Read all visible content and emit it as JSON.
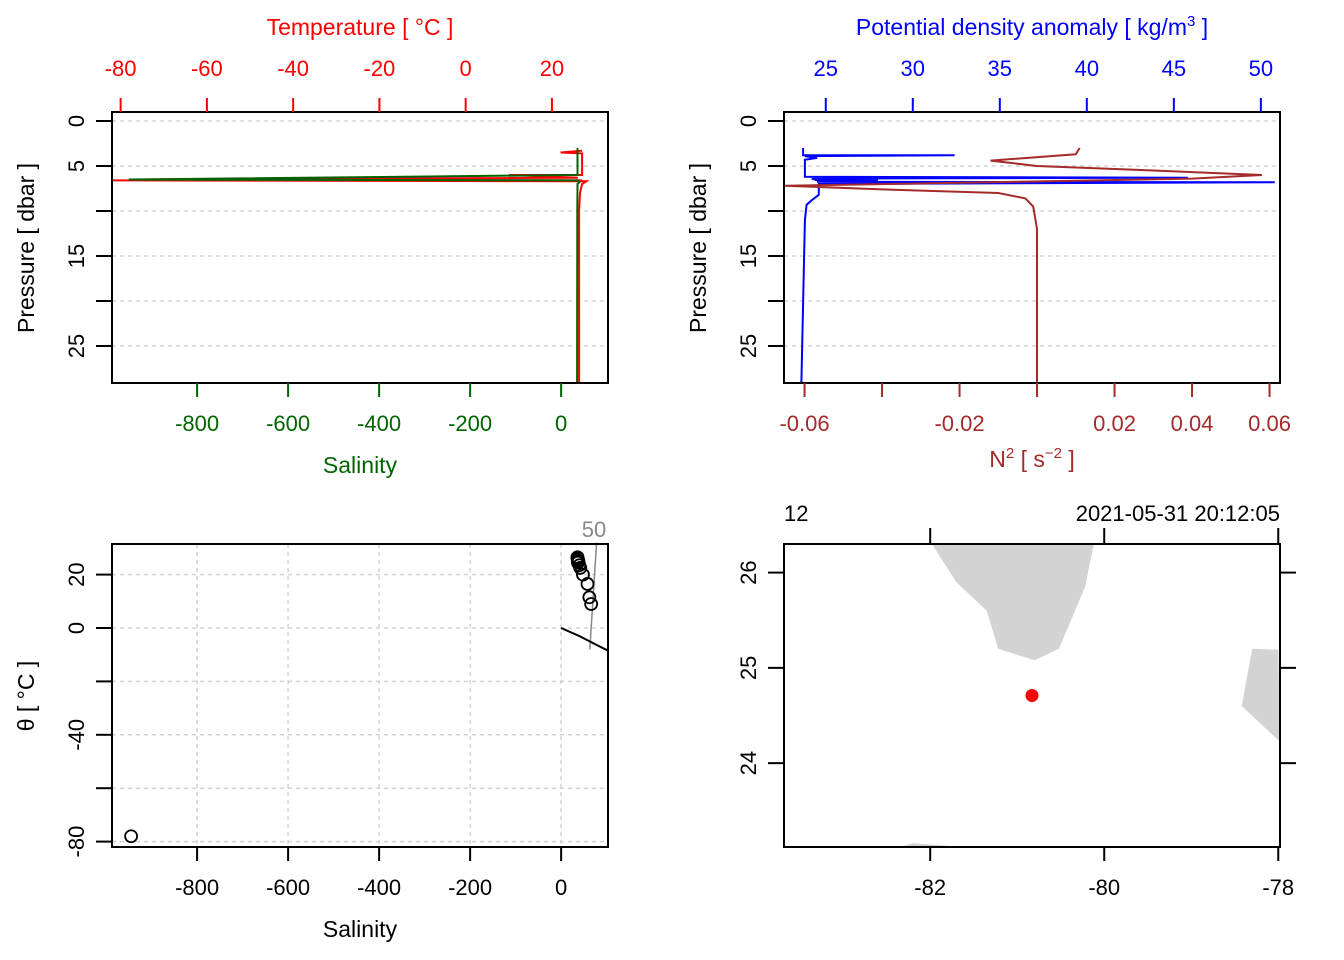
{
  "chart_data": [
    {
      "id": "profile-temperature-salinity",
      "type": "line",
      "top_axis": {
        "label": "Temperature [ °C ]",
        "color": "#ff0000",
        "ticks": [
          -80,
          -60,
          -40,
          -20,
          0,
          20
        ],
        "range": [
          -82,
          33
        ]
      },
      "bottom_axis": {
        "label": "Salinity",
        "color": "#006400",
        "ticks": [
          -800,
          -600,
          -400,
          -200,
          0
        ],
        "range": [
          -987,
          103
        ]
      },
      "y_axis": {
        "label": "Pressure [ dbar ]",
        "ticks": [
          0,
          5,
          10,
          15,
          20,
          25
        ],
        "tick_labels": [
          "0",
          "5",
          "",
          "15",
          "",
          "25"
        ],
        "range": [
          0,
          29
        ],
        "reversed": true
      },
      "grid": true,
      "series": [
        {
          "name": "Temperature",
          "color": "#ff0000",
          "points": [
            [
              27,
              3.3
            ],
            [
              22,
              3.5
            ],
            [
              27,
              3.6
            ],
            [
              27,
              6.0
            ],
            [
              10,
              6.0
            ],
            [
              26,
              6.3
            ],
            [
              -75,
              6.5
            ],
            [
              27,
              6.6
            ],
            [
              -82,
              6.6
            ],
            [
              28,
              6.7
            ],
            [
              27,
              7.0
            ],
            [
              26.5,
              8.0
            ],
            [
              26.3,
              10
            ],
            [
              26.3,
              29
            ]
          ]
        },
        {
          "name": "Salinity",
          "color": "#006400",
          "points": [
            [
              36,
              3.0
            ],
            [
              36,
              6.0
            ],
            [
              -950,
              6.5
            ],
            [
              36,
              6.6
            ],
            [
              40,
              6.8
            ],
            [
              36,
              7.0
            ],
            [
              35.5,
              10
            ],
            [
              35,
              29
            ]
          ]
        }
      ]
    },
    {
      "id": "profile-density-n2",
      "type": "line",
      "top_axis": {
        "label": "Potential density anomaly [ kg/m³ ]",
        "label_main": "Potential density anomaly [ kg/m",
        "label_sup": "3",
        "label_end": " ]",
        "color": "#0000ff",
        "ticks": [
          25,
          30,
          35,
          40,
          45,
          50
        ],
        "range": [
          22.6,
          51.1
        ]
      },
      "bottom_axis": {
        "label": "N² [ s⁻² ]",
        "label_main": "N",
        "label_sup": "2",
        "label_mid": " [ s",
        "label_sup2": "−2",
        "label_end": " ]",
        "color": "#a52a2a",
        "ticks": [
          -0.06,
          -0.04,
          -0.02,
          0,
          0.02,
          0.04,
          0.06
        ],
        "tick_labels": [
          "-0.06",
          "",
          "-0.02",
          "",
          "0.02",
          "0.04",
          "0.06"
        ],
        "range": [
          -0.0653,
          0.0627
        ]
      },
      "y_axis": {
        "label": "Pressure [ dbar ]",
        "ticks": [
          0,
          5,
          10,
          15,
          20,
          25
        ],
        "tick_labels": [
          "0",
          "5",
          "",
          "15",
          "",
          "25"
        ],
        "range": [
          0,
          29
        ],
        "reversed": true
      },
      "grid": true,
      "series": [
        {
          "name": "Potential density anomaly",
          "color": "#0000ff",
          "points": [
            [
              23.7,
              3.0
            ],
            [
              23.7,
              3.8
            ],
            [
              32.4,
              3.8
            ],
            [
              23.8,
              3.9
            ],
            [
              24.5,
              4.1
            ],
            [
              23.8,
              4.3
            ],
            [
              23.8,
              6.2
            ],
            [
              45.8,
              6.3
            ],
            [
              24.2,
              6.4
            ],
            [
              24.5,
              6.6
            ],
            [
              28.0,
              6.6
            ],
            [
              24.5,
              6.75
            ],
            [
              50.8,
              6.8
            ],
            [
              24.6,
              7.0
            ],
            [
              24.6,
              8.2
            ],
            [
              24.2,
              8.8
            ],
            [
              23.9,
              9.3
            ],
            [
              23.8,
              11
            ],
            [
              23.6,
              29
            ]
          ]
        },
        {
          "name": "N2",
          "color": "#a52a2a",
          "points": [
            [
              0.011,
              3.0
            ],
            [
              0.01,
              3.7
            ],
            [
              -0.012,
              4.4
            ],
            [
              0.0,
              5.0
            ],
            [
              0.03,
              5.5
            ],
            [
              0.058,
              6.0
            ],
            [
              0.04,
              6.4
            ],
            [
              0.015,
              6.6
            ],
            [
              -0.065,
              7.2
            ],
            [
              -0.04,
              7.6
            ],
            [
              -0.01,
              8.0
            ],
            [
              -0.003,
              8.6
            ],
            [
              -0.001,
              9.5
            ],
            [
              0.0,
              12
            ],
            [
              0.0,
              29
            ]
          ]
        }
      ]
    },
    {
      "id": "ts-diagram",
      "type": "scatter",
      "x_axis": {
        "label": "Salinity",
        "ticks": [
          -800,
          -600,
          -400,
          -200,
          0
        ],
        "range": [
          -987,
          103
        ]
      },
      "y_axis": {
        "label": "θ [ °C ]",
        "ticks": [
          20,
          0,
          -20,
          -40,
          -60,
          -80
        ],
        "tick_labels": [
          "20",
          "0",
          "",
          "-40",
          "",
          "-80"
        ],
        "range": [
          -81.5,
          32
        ]
      },
      "grid": true,
      "points": [
        [
          -945,
          -78
        ],
        [
          36,
          26.5
        ],
        [
          36,
          26
        ],
        [
          37,
          25.6
        ],
        [
          38,
          25
        ],
        [
          37,
          24.5
        ],
        [
          40,
          23.5
        ],
        [
          42,
          22.5
        ],
        [
          48,
          20
        ],
        [
          58,
          16.5
        ],
        [
          62,
          11.5
        ],
        [
          66,
          9
        ]
      ],
      "isopycnal": {
        "label": "50",
        "color": "#888888",
        "points": [
          [
            63,
            -8
          ],
          [
            78,
            32
          ]
        ]
      },
      "freezing_line": {
        "color": "#000000",
        "points": [
          [
            0,
            0
          ],
          [
            40,
            -3
          ],
          [
            80,
            -6.5
          ],
          [
            103,
            -8.5
          ]
        ]
      }
    },
    {
      "id": "station-map",
      "type": "scatter",
      "top_labels": {
        "station": "12",
        "time": "2021-05-31 20:12:05"
      },
      "x_axis": {
        "ticks": [
          -82,
          -80,
          -78
        ],
        "range": [
          -83.68,
          -77.98
        ]
      },
      "y_axis": {
        "ticks": [
          24,
          25,
          26
        ],
        "range": [
          23.12,
          26.3
        ]
      },
      "land_color": "#d3d3d3",
      "station": {
        "lon": -80.83,
        "lat": 24.71,
        "color": "#ff0000"
      },
      "land_polygons": [
        [
          [
            -81.98,
            26.3
          ],
          [
            -81.7,
            25.9
          ],
          [
            -81.35,
            25.6
          ],
          [
            -81.22,
            25.2
          ],
          [
            -80.8,
            25.08
          ],
          [
            -80.52,
            25.2
          ],
          [
            -80.22,
            25.85
          ],
          [
            -80.12,
            26.3
          ]
        ],
        [
          [
            -78.42,
            24.6
          ],
          [
            -78.3,
            25.2
          ],
          [
            -78.0,
            25.19
          ],
          [
            -77.98,
            24.25
          ],
          [
            -78.0,
            24.24
          ]
        ],
        [
          [
            -82.35,
            23.12
          ],
          [
            -82.2,
            23.16
          ],
          [
            -81.6,
            23.12
          ]
        ]
      ]
    }
  ]
}
